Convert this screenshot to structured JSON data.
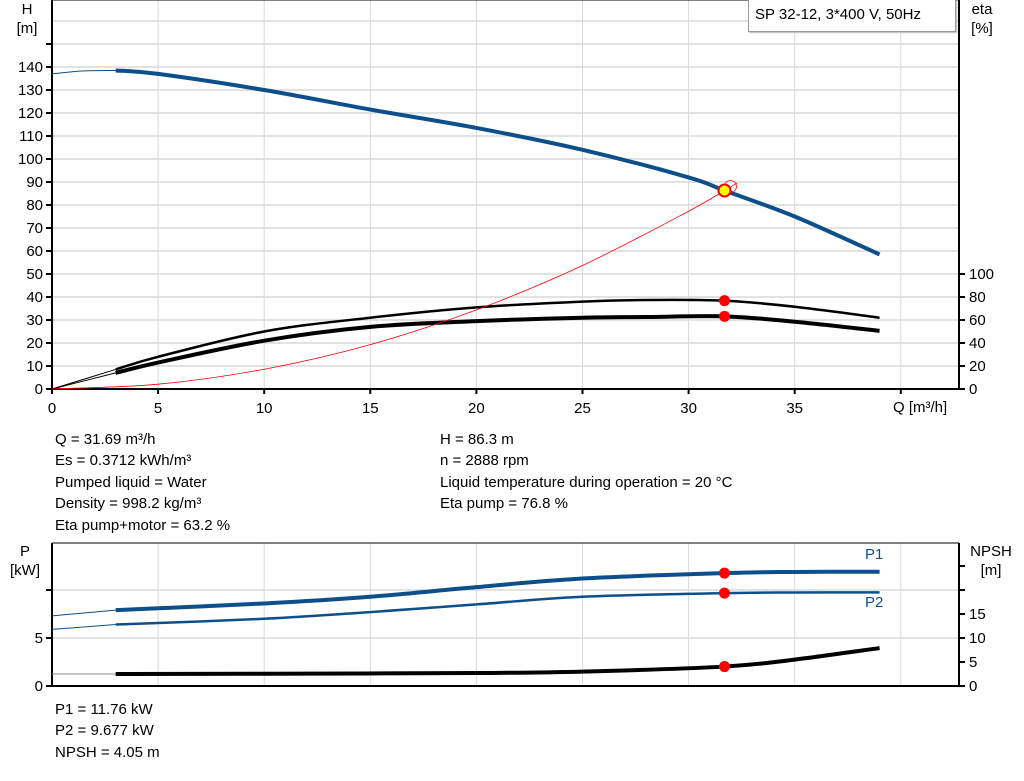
{
  "legend_label": "SP 32-12, 3*400 V, 50Hz",
  "colors": {
    "head": "#0d4f8b",
    "efficiency": "#000000",
    "system_curve": "#ff0000",
    "duty_point": "#ff0000",
    "duty_point_fill": "#ffff00",
    "grid": "#d9d9d9"
  },
  "chart_data": [
    {
      "type": "line",
      "x_label": "Q [m³/h]",
      "xlim": [
        0,
        40
      ],
      "x_ticks": [
        "0",
        "5",
        "10",
        "15",
        "20",
        "25",
        "30",
        "35"
      ],
      "left_axis": {
        "label_line1": "H",
        "label_line2": "[m]",
        "ylim": [
          0,
          160
        ],
        "ticks": [
          "0",
          "10",
          "20",
          "30",
          "40",
          "50",
          "60",
          "70",
          "80",
          "90",
          "100",
          "110",
          "120",
          "130",
          "140"
        ]
      },
      "right_axis": {
        "label_line1": "eta",
        "label_line2": "[%]",
        "ylim": [
          0,
          330
        ],
        "ticks": [
          "0",
          "20",
          "40",
          "60",
          "80",
          "100"
        ]
      },
      "grid": true,
      "series": [
        {
          "key": "H",
          "axis": "left",
          "color": "#0d4f8b",
          "x": [
            0,
            1.5,
            3,
            5,
            10,
            15,
            20,
            25,
            30,
            31.69,
            35,
            39
          ],
          "y": [
            137,
            138.3,
            138.5,
            137,
            130,
            121.5,
            113.5,
            104,
            92,
            86.3,
            75,
            58.5
          ]
        },
        {
          "key": "eta_pump",
          "axis": "right",
          "color": "#000000",
          "x": [
            0,
            3,
            5,
            10,
            15,
            20,
            25,
            28,
            31.69,
            35,
            39
          ],
          "y": [
            0,
            17,
            28,
            50,
            62,
            71,
            76,
            77.4,
            76.8,
            71.5,
            62
          ]
        },
        {
          "key": "eta_pump_motor",
          "axis": "right",
          "color": "#000000",
          "x": [
            0,
            3,
            5,
            10,
            15,
            20,
            25,
            28,
            31.69,
            35,
            39
          ],
          "y": [
            0,
            14,
            23,
            42,
            54,
            59,
            62,
            62.6,
            63.2,
            58.5,
            50.6
          ]
        },
        {
          "key": "system_curve",
          "axis": "left",
          "color": "#ff0000",
          "x": [
            0,
            5,
            10,
            15,
            20,
            25,
            30,
            31.69,
            32.3
          ],
          "y": [
            0,
            2.1,
            8.6,
            19.3,
            34.4,
            53.7,
            77.3,
            86.3,
            89.6
          ]
        }
      ],
      "duty_point": {
        "q": 31.69,
        "h": 86.3,
        "eta_pump": 76.8,
        "eta_pump_motor": 63.2
      }
    },
    {
      "type": "line",
      "x_label": "",
      "xlim": [
        0,
        40
      ],
      "left_axis": {
        "label_line1": "P",
        "label_line2": "[kW]",
        "ylim": [
          0,
          15
        ],
        "ticks": [
          "0",
          "5"
        ]
      },
      "right_axis": {
        "label_line1": "NPSH",
        "label_line2": "[m]",
        "ylim": [
          0,
          30
        ],
        "ticks": [
          "0",
          "5",
          "10",
          "15"
        ]
      },
      "grid": true,
      "series": [
        {
          "key": "P1",
          "name": "P1",
          "axis": "left",
          "color": "#0d4f8b",
          "x": [
            0,
            3,
            10,
            15,
            20,
            25,
            31.69,
            35,
            39
          ],
          "y": [
            7.3,
            7.9,
            8.6,
            9.3,
            10.3,
            11.2,
            11.76,
            11.88,
            11.9
          ]
        },
        {
          "key": "P2",
          "name": "P2",
          "axis": "left",
          "color": "#0d4f8b",
          "x": [
            0,
            3,
            10,
            15,
            20,
            25,
            31.69,
            35,
            39
          ],
          "y": [
            5.9,
            6.4,
            7.0,
            7.7,
            8.5,
            9.3,
            9.677,
            9.74,
            9.75
          ]
        },
        {
          "key": "NPSH",
          "axis": "right",
          "color": "#000000",
          "x": [
            0,
            3,
            10,
            20,
            25,
            31.69,
            35,
            39
          ],
          "y": [
            2.5,
            2.5,
            2.55,
            2.7,
            3.0,
            4.05,
            5.5,
            7.9
          ]
        }
      ],
      "duty_point": {
        "q": 31.69,
        "p1": 11.76,
        "p2": 9.677,
        "npsh": 4.05
      }
    }
  ],
  "results_top": {
    "q": "Q = 31.69 m³/h",
    "es": "Es = 0.3712 kWh/m³",
    "liquid": "Pumped liquid = Water",
    "density": "Density = 998.2 kg/m³",
    "eta_pm": "Eta pump+motor = 63.2 %",
    "h": "H = 86.3 m",
    "n": "n = 2888 rpm",
    "temp": "Liquid temperature during operation = 20 °C",
    "eta_p": "Eta pump = 76.8 %"
  },
  "results_bottom": {
    "p1": "P1 = 11.76 kW",
    "p2": "P2 = 9.677 kW",
    "npsh": "NPSH = 4.05 m"
  }
}
